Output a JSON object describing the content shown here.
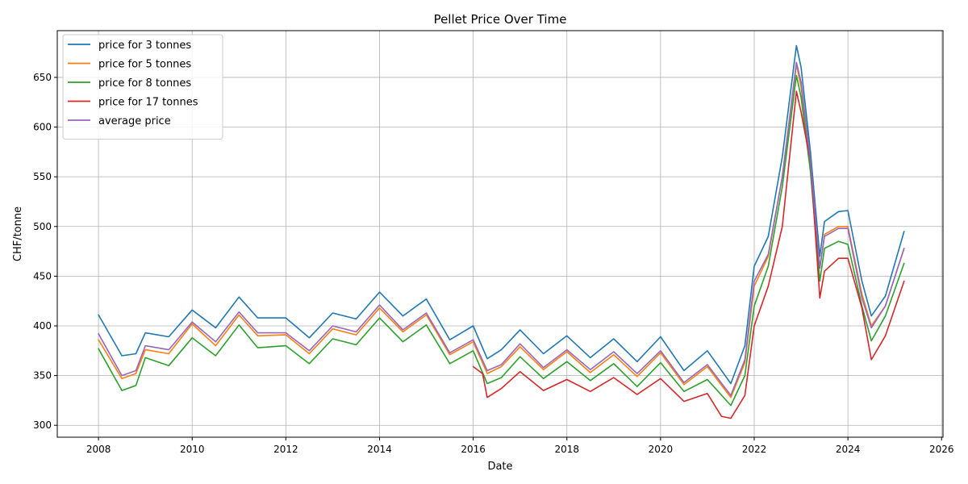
{
  "chart_data": {
    "type": "line",
    "title": "Pellet Price Over Time",
    "xlabel": "Date",
    "ylabel": "CHF/tonne",
    "x_range": [
      2007.12,
      2026.03
    ],
    "ylim": [
      288,
      697
    ],
    "x_ticks": [
      "2008",
      "2010",
      "2012",
      "2014",
      "2016",
      "2018",
      "2020",
      "2022",
      "2024",
      "2026"
    ],
    "y_ticks": [
      "300",
      "350",
      "400",
      "450",
      "500",
      "550",
      "600",
      "650"
    ],
    "grid": true,
    "legend_position": "top-left",
    "colors": {
      "price for 3 tonnes": "#1f77b4",
      "price for 5 tonnes": "#ff7f0e",
      "price for 8 tonnes": "#2ca02c",
      "price for 17 tonnes": "#d62728",
      "average price": "#9467bd"
    },
    "series": [
      {
        "name": "price for 3 tonnes",
        "x": [
          2008.0,
          2008.5,
          2008.8,
          2009.0,
          2009.5,
          2010.0,
          2010.5,
          2011.0,
          2011.4,
          2012.0,
          2012.5,
          2013.0,
          2013.5,
          2014.0,
          2014.5,
          2015.0,
          2015.5,
          2016.0,
          2016.3,
          2016.6,
          2017.0,
          2017.5,
          2018.0,
          2018.5,
          2019.0,
          2019.5,
          2020.0,
          2020.5,
          2021.0,
          2021.5,
          2021.8,
          2022.0,
          2022.3,
          2022.6,
          2022.9,
          2023.0,
          2023.2,
          2023.4,
          2023.5,
          2023.8,
          2024.0,
          2024.3,
          2024.5,
          2024.8,
          2025.2
        ],
        "y": [
          411,
          370,
          372,
          393,
          389,
          416,
          398,
          429,
          408,
          408,
          388,
          413,
          407,
          434,
          410,
          427,
          386,
          400,
          367,
          376,
          396,
          372,
          390,
          368,
          387,
          364,
          389,
          355,
          375,
          342,
          380,
          460,
          490,
          570,
          682,
          660,
          575,
          470,
          505,
          515,
          516,
          445,
          410,
          430,
          495
        ]
      },
      {
        "name": "price for 5 tonnes",
        "x": [
          2008.0,
          2008.5,
          2008.8,
          2009.0,
          2009.5,
          2010.0,
          2010.5,
          2011.0,
          2011.4,
          2012.0,
          2012.5,
          2013.0,
          2013.5,
          2014.0,
          2014.5,
          2015.0,
          2015.5,
          2016.0,
          2016.3,
          2016.6,
          2017.0,
          2017.5,
          2018.0,
          2018.5,
          2019.0,
          2019.5,
          2020.0,
          2020.5,
          2021.0,
          2021.5,
          2021.8,
          2022.0,
          2022.3,
          2022.6,
          2022.9,
          2023.0,
          2023.2,
          2023.4,
          2023.5,
          2023.8,
          2024.0,
          2024.3,
          2024.5,
          2024.8,
          2025.2
        ],
        "y": [
          386,
          347,
          352,
          376,
          372,
          402,
          380,
          411,
          390,
          391,
          372,
          397,
          391,
          418,
          394,
          411,
          371,
          384,
          352,
          359,
          379,
          356,
          374,
          353,
          371,
          349,
          373,
          341,
          359,
          328,
          363,
          440,
          470,
          550,
          663,
          640,
          562,
          458,
          492,
          500,
          500,
          432,
          400,
          420,
          478
        ]
      },
      {
        "name": "price for 8 tonnes",
        "x": [
          2008.0,
          2008.5,
          2008.8,
          2009.0,
          2009.5,
          2010.0,
          2010.5,
          2011.0,
          2011.4,
          2012.0,
          2012.5,
          2013.0,
          2013.5,
          2014.0,
          2014.5,
          2015.0,
          2015.5,
          2016.0,
          2016.3,
          2016.6,
          2017.0,
          2017.5,
          2018.0,
          2018.5,
          2019.0,
          2019.5,
          2020.0,
          2020.5,
          2021.0,
          2021.5,
          2021.8,
          2022.0,
          2022.3,
          2022.6,
          2022.9,
          2023.0,
          2023.2,
          2023.4,
          2023.5,
          2023.8,
          2024.0,
          2024.3,
          2024.5,
          2024.8,
          2025.2
        ],
        "y": [
          377,
          335,
          340,
          368,
          360,
          388,
          370,
          401,
          378,
          380,
          362,
          387,
          381,
          408,
          384,
          401,
          362,
          375,
          342,
          348,
          369,
          347,
          364,
          345,
          362,
          339,
          363,
          334,
          346,
          320,
          350,
          420,
          460,
          540,
          652,
          630,
          555,
          445,
          478,
          485,
          482,
          420,
          385,
          410,
          463
        ]
      },
      {
        "name": "price for 17 tonnes",
        "x": [
          2016.0,
          2016.2,
          2016.3,
          2016.6,
          2017.0,
          2017.5,
          2018.0,
          2018.5,
          2019.0,
          2019.5,
          2020.0,
          2020.5,
          2021.0,
          2021.3,
          2021.5,
          2021.8,
          2022.0,
          2022.3,
          2022.6,
          2022.9,
          2023.0,
          2023.2,
          2023.4,
          2023.5,
          2023.8,
          2024.0,
          2024.3,
          2024.5,
          2024.8,
          2025.2
        ],
        "y": [
          359,
          352,
          328,
          337,
          354,
          335,
          346,
          334,
          348,
          331,
          347,
          324,
          332,
          309,
          307,
          330,
          400,
          440,
          500,
          636,
          615,
          565,
          428,
          455,
          468,
          468,
          418,
          366,
          390,
          445
        ]
      },
      {
        "name": "average price",
        "x": [
          2008.0,
          2008.5,
          2008.8,
          2009.0,
          2009.5,
          2010.0,
          2010.5,
          2011.0,
          2011.4,
          2012.0,
          2012.5,
          2013.0,
          2013.5,
          2014.0,
          2014.5,
          2015.0,
          2015.5,
          2016.0,
          2016.3,
          2016.6,
          2017.0,
          2017.5,
          2018.0,
          2018.5,
          2019.0,
          2019.5,
          2020.0,
          2020.5,
          2021.0,
          2021.5,
          2021.8,
          2022.0,
          2022.3,
          2022.6,
          2022.9,
          2023.0,
          2023.2,
          2023.4,
          2023.5,
          2023.8,
          2024.0,
          2024.3,
          2024.5,
          2024.8,
          2025.2
        ],
        "y": [
          392,
          350,
          355,
          380,
          376,
          404,
          384,
          414,
          393,
          393,
          375,
          400,
          394,
          421,
          396,
          413,
          373,
          386,
          355,
          361,
          382,
          358,
          376,
          356,
          374,
          352,
          375,
          343,
          361,
          330,
          366,
          445,
          472,
          550,
          665,
          645,
          565,
          458,
          490,
          498,
          498,
          428,
          398,
          420,
          478
        ]
      }
    ]
  }
}
